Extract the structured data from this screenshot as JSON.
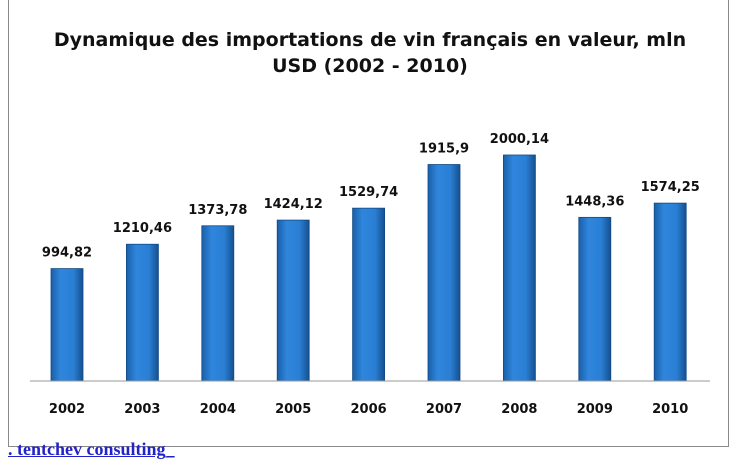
{
  "chart_data": {
    "type": "bar",
    "title": "Dynamique des importations de vin français en valeur, mln USD (2002 - 2010)",
    "title_lines": [
      "Dynamique des importations de vin français en valeur, mln",
      "USD (2002 - 2010)"
    ],
    "categories": [
      "2002",
      "2003",
      "2004",
      "2005",
      "2006",
      "2007",
      "2008",
      "2009",
      "2010"
    ],
    "values": [
      994.82,
      1210.46,
      1373.78,
      1424.12,
      1529.74,
      1915.9,
      2000.14,
      1448.36,
      1574.25
    ],
    "value_labels": [
      "994,82",
      "1210,46",
      "1373,78",
      "1424,12",
      "1529,74",
      "1915,9",
      "2000,14",
      "1448,36",
      "1574,25"
    ],
    "xlabel": "",
    "ylabel": "",
    "ylim": [
      0,
      2000.14
    ],
    "grid": false,
    "legend": "none",
    "bar_color": "#2a7fd4"
  },
  "footer": {
    "link_text": ". tentchev consulting_"
  }
}
